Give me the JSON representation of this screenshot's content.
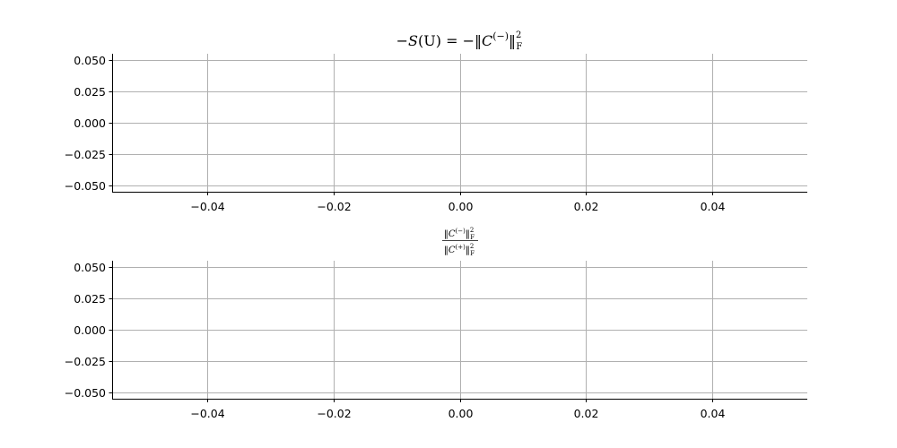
{
  "chart_data": [
    {
      "type": "line",
      "title_parts": {
        "lhs_minus": "−",
        "lhs_var": "S",
        "lhs_arg": "(U)",
        "equals": " = −‖",
        "norm_var": "C",
        "sup": "(−)",
        "close": "‖",
        "sub": "F",
        "pow": "2"
      },
      "series": [],
      "xlim": [
        -0.055,
        0.055
      ],
      "ylim": [
        -0.055,
        0.055
      ],
      "xticks": [
        -0.04,
        -0.02,
        0.0,
        0.02,
        0.04
      ],
      "yticks": [
        -0.05,
        -0.025,
        0.0,
        0.025,
        0.05
      ],
      "xtick_labels": [
        "−0.04",
        "−0.02",
        "0.00",
        "0.02",
        "0.04"
      ],
      "ytick_labels": [
        "−0.050",
        "−0.025",
        "0.000",
        "0.025",
        "0.050"
      ],
      "grid": true
    },
    {
      "type": "line",
      "title_parts": {
        "num_open": "‖",
        "num_var": "C",
        "num_sup": "(−)",
        "num_close": "‖",
        "num_sub": "F",
        "num_pow": "2",
        "den_open": "‖",
        "den_var": "C",
        "den_sup": "(+)",
        "den_close": "‖",
        "den_sub": "F",
        "den_pow": "2"
      },
      "series": [],
      "xlim": [
        -0.055,
        0.055
      ],
      "ylim": [
        -0.055,
        0.055
      ],
      "xticks": [
        -0.04,
        -0.02,
        0.0,
        0.02,
        0.04
      ],
      "yticks": [
        -0.05,
        -0.025,
        0.0,
        0.025,
        0.05
      ],
      "xtick_labels": [
        "−0.04",
        "−0.02",
        "0.00",
        "0.02",
        "0.04"
      ],
      "ytick_labels": [
        "−0.050",
        "−0.025",
        "0.000",
        "0.025",
        "0.050"
      ],
      "grid": true
    }
  ]
}
